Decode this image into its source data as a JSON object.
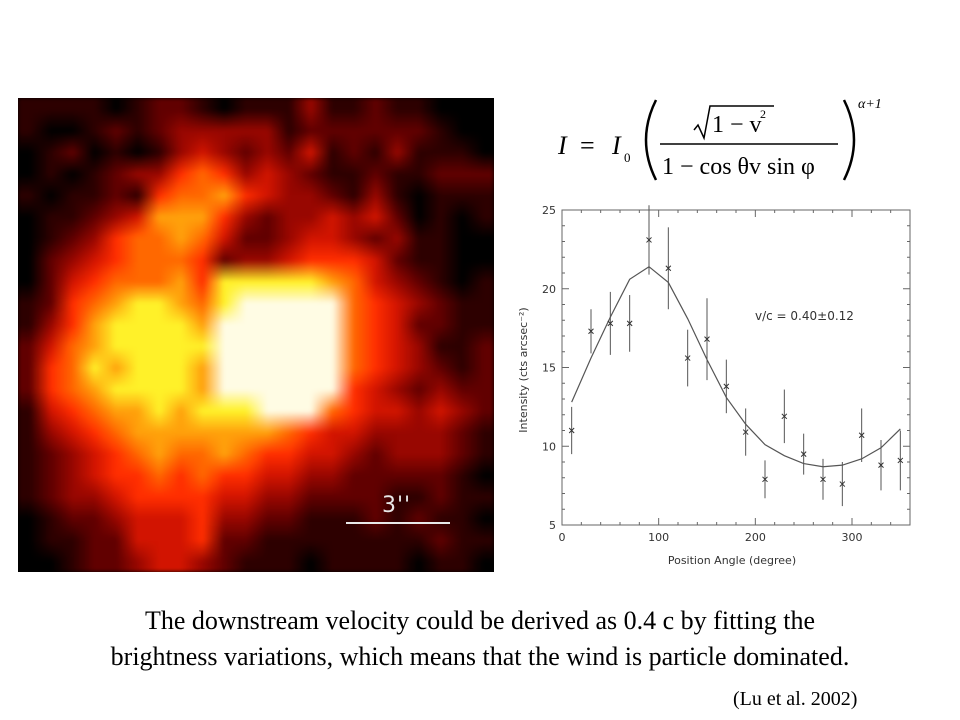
{
  "image": {
    "scale_label": "3''",
    "heatmap_grid": {
      "rows": [
        "1111012210111311211000",
        "1001212333331222222100",
        "0120101343232412131110",
        "0101233565343211211222",
        "1011215667543321310111",
        "0112347775323343420101",
        "0123566764223443231100",
        "0234566652334555421100",
        "0245666758888876432101",
        "1256788768999996543211",
        "1357888879999996542211",
        "2467888889999996543112",
        "2568788879999996543212",
        "2567888879999995432322",
        "1456778788899965443432",
        "1345677777776544333321",
        "1234567667655443233321",
        "1234556565544332222210",
        "1233455554433222211211",
        "0122344453322111212110",
        "0112244452211111111211",
        "0012234432111011110110"
      ]
    }
  },
  "formula": {
    "lhs": "I",
    "equals": "=",
    "coef": "I",
    "coef_sub": "0",
    "numerator_rest": "1 − v",
    "numerator_sup": "2",
    "denominator": "1 − cos θv sin φ",
    "exponent": "α+1"
  },
  "chart_data": {
    "type": "scatter",
    "xlabel": "Position Angle (degree)",
    "ylabel": "Intensity (cts arcsec⁻²)",
    "xlim": [
      0,
      360
    ],
    "ylim": [
      5,
      25
    ],
    "xticks": [
      0,
      100,
      200,
      300
    ],
    "yticks": [
      5,
      10,
      15,
      20,
      25
    ],
    "annotation": "v/c = 0.40±0.12",
    "points": [
      {
        "x": 10,
        "y": 11.0,
        "err": 1.5
      },
      {
        "x": 30,
        "y": 17.3,
        "err": 1.4
      },
      {
        "x": 50,
        "y": 17.8,
        "err": 2.0
      },
      {
        "x": 70,
        "y": 17.8,
        "err": 1.8
      },
      {
        "x": 90,
        "y": 23.1,
        "err": 2.2
      },
      {
        "x": 110,
        "y": 21.3,
        "err": 2.6
      },
      {
        "x": 130,
        "y": 15.6,
        "err": 1.8
      },
      {
        "x": 150,
        "y": 16.8,
        "err": 2.6
      },
      {
        "x": 170,
        "y": 13.8,
        "err": 1.7
      },
      {
        "x": 190,
        "y": 10.9,
        "err": 1.5
      },
      {
        "x": 210,
        "y": 7.9,
        "err": 1.2
      },
      {
        "x": 230,
        "y": 11.9,
        "err": 1.7
      },
      {
        "x": 250,
        "y": 9.5,
        "err": 1.3
      },
      {
        "x": 270,
        "y": 7.9,
        "err": 1.3
      },
      {
        "x": 290,
        "y": 7.6,
        "err": 1.4
      },
      {
        "x": 310,
        "y": 10.7,
        "err": 1.7
      },
      {
        "x": 330,
        "y": 8.8,
        "err": 1.6
      },
      {
        "x": 350,
        "y": 9.1,
        "err": 1.9
      }
    ],
    "fit": {
      "x": [
        10,
        30,
        50,
        70,
        90,
        110,
        130,
        150,
        170,
        190,
        210,
        230,
        250,
        270,
        290,
        310,
        330,
        350
      ],
      "y": [
        12.8,
        15.6,
        18.2,
        20.6,
        21.4,
        20.4,
        18.1,
        15.5,
        13.1,
        11.4,
        10.1,
        9.4,
        8.9,
        8.7,
        8.8,
        9.2,
        9.9,
        11.1
      ]
    }
  },
  "caption": {
    "line1": "The downstream velocity could be derived as 0.4 c by fitting the",
    "line2": "brightness variations, which means that the wind is particle dominated."
  },
  "citation": "(Lu et al. 2002)"
}
